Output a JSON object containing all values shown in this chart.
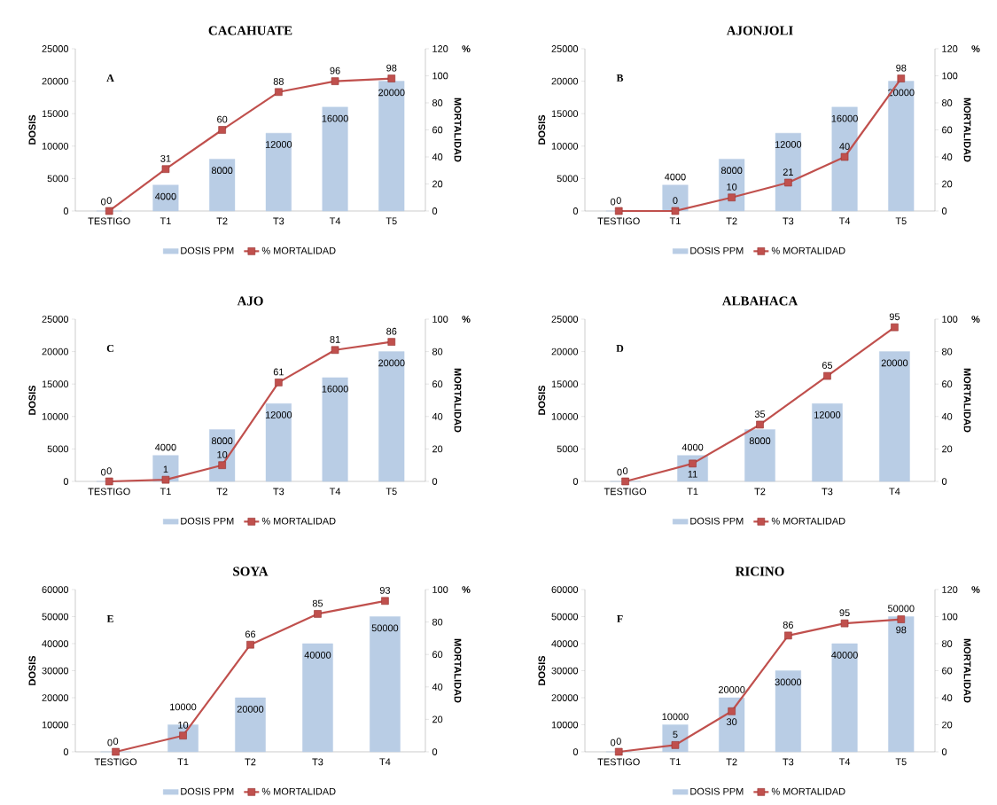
{
  "chart_data": [
    {
      "type": "bar",
      "title": "CACAHUATE",
      "ylabel": "DOSIS",
      "y2label": "MORTALIDAD",
      "annotations": [
        "A",
        "%"
      ],
      "categories": [
        "TESTIGO",
        "T1",
        "T2",
        "T3",
        "T4",
        "T5"
      ],
      "series": [
        {
          "name": "DOSIS PPM",
          "type": "bar",
          "color": "#b9cde5",
          "values": [
            0,
            4000,
            8000,
            12000,
            16000,
            20000
          ]
        },
        {
          "name": "% MORTALIDAD",
          "type": "line",
          "axis": "y2",
          "color": "#c0504d",
          "values": [
            0,
            31,
            60,
            88,
            96,
            98
          ]
        }
      ],
      "ylim": [
        0,
        25000
      ],
      "yticks": [
        0,
        5000,
        10000,
        15000,
        20000,
        25000
      ],
      "y2lim": [
        0,
        120
      ],
      "y2ticks": [
        0,
        20,
        40,
        60,
        80,
        100,
        120
      ],
      "data_labels": true,
      "legend": "bottom",
      "marker": "square",
      "line_style": "solid"
    },
    {
      "type": "bar",
      "title": "AJONJOLI",
      "ylabel": "DOSIS",
      "y2label": "MORTALIDAD",
      "annotations": [
        "B",
        "%"
      ],
      "categories": [
        "TESTIGO",
        "T1",
        "T2",
        "T3",
        "T4",
        "T5"
      ],
      "series": [
        {
          "name": "DOSIS PPM",
          "type": "bar",
          "color": "#b9cde5",
          "values": [
            0,
            4000,
            8000,
            12000,
            16000,
            20000
          ]
        },
        {
          "name": "% MORTALIDAD",
          "type": "line",
          "axis": "y2",
          "color": "#c0504d",
          "values": [
            0,
            0,
            10,
            21,
            40,
            98
          ]
        }
      ],
      "ylim": [
        0,
        25000
      ],
      "yticks": [
        0,
        5000,
        10000,
        15000,
        20000,
        25000
      ],
      "y2lim": [
        0,
        120
      ],
      "y2ticks": [
        0,
        20,
        40,
        60,
        80,
        100,
        120
      ],
      "data_labels": true,
      "legend": "bottom",
      "marker": "square",
      "line_style": "solid"
    },
    {
      "type": "bar",
      "title": "AJO",
      "ylabel": "DOSIS",
      "y2label": "MORTALIDAD",
      "annotations": [
        "C",
        "%"
      ],
      "categories": [
        "TESTIGO",
        "T1",
        "T2",
        "T3",
        "T4",
        "T5"
      ],
      "series": [
        {
          "name": "DOSIS PPM",
          "type": "bar",
          "color": "#b9cde5",
          "values": [
            0,
            4000,
            8000,
            12000,
            16000,
            20000
          ]
        },
        {
          "name": "% MORTALIDAD",
          "type": "line",
          "axis": "y2",
          "color": "#c0504d",
          "values": [
            0,
            1,
            10,
            61,
            81,
            86
          ]
        }
      ],
      "ylim": [
        0,
        25000
      ],
      "yticks": [
        0,
        5000,
        10000,
        15000,
        20000,
        25000
      ],
      "y2lim": [
        0,
        100
      ],
      "y2ticks": [
        0,
        20,
        40,
        60,
        80,
        100
      ],
      "data_labels": true,
      "legend": "bottom",
      "marker": "square",
      "line_style": "solid"
    },
    {
      "type": "bar",
      "title": "ALBAHACA",
      "ylabel": "DOSIS",
      "y2label": "MORTALIDAD",
      "annotations": [
        "D",
        "%"
      ],
      "categories": [
        "TESTIGO",
        "T1",
        "T2",
        "T3",
        "T4"
      ],
      "series": [
        {
          "name": "DOSIS PPM",
          "type": "bar",
          "color": "#b9cde5",
          "values": [
            0,
            4000,
            8000,
            12000,
            20000
          ]
        },
        {
          "name": "% MORTALIDAD",
          "type": "line",
          "axis": "y2",
          "color": "#c0504d",
          "values": [
            0,
            11,
            35,
            65,
            95
          ]
        }
      ],
      "ylim": [
        0,
        25000
      ],
      "yticks": [
        0,
        5000,
        10000,
        15000,
        20000,
        25000
      ],
      "y2lim": [
        0,
        100
      ],
      "y2ticks": [
        0,
        20,
        40,
        60,
        80,
        100
      ],
      "data_labels": true,
      "legend": "bottom",
      "marker": "square",
      "line_style": "solid"
    },
    {
      "type": "bar",
      "title": "SOYA",
      "ylabel": "DOSIS",
      "y2label": "MORTALIDAD",
      "annotations": [
        "E",
        "%"
      ],
      "categories": [
        "TESTIGO",
        "T1",
        "T2",
        "T3",
        "T4"
      ],
      "series": [
        {
          "name": "DOSIS PPM",
          "type": "bar",
          "color": "#b9cde5",
          "values": [
            0,
            10000,
            20000,
            40000,
            50000
          ]
        },
        {
          "name": "% MORTALIDAD",
          "type": "line",
          "axis": "y2",
          "color": "#c0504d",
          "values": [
            0,
            10,
            66,
            85,
            93
          ]
        }
      ],
      "ylim": [
        0,
        60000
      ],
      "yticks": [
        0,
        10000,
        20000,
        30000,
        40000,
        50000,
        60000
      ],
      "y2lim": [
        0,
        100
      ],
      "y2ticks": [
        0,
        20,
        40,
        60,
        80,
        100
      ],
      "data_labels": true,
      "legend": "bottom",
      "marker": "square",
      "line_style": "solid"
    },
    {
      "type": "bar",
      "title": "RICINO",
      "ylabel": "DOSIS",
      "y2label": "MORTALIDAD",
      "annotations": [
        "F",
        "%"
      ],
      "categories": [
        "TESTIGO",
        "T1",
        "T2",
        "T3",
        "T4",
        "T5"
      ],
      "series": [
        {
          "name": "DOSIS PPM",
          "type": "bar",
          "color": "#b9cde5",
          "values": [
            0,
            10000,
            20000,
            30000,
            40000,
            50000
          ]
        },
        {
          "name": "% MORTALIDAD",
          "type": "line",
          "axis": "y2",
          "color": "#c0504d",
          "values": [
            0,
            5,
            30,
            86,
            95,
            98
          ]
        }
      ],
      "ylim": [
        0,
        60000
      ],
      "yticks": [
        0,
        10000,
        20000,
        30000,
        40000,
        50000,
        60000
      ],
      "y2lim": [
        0,
        120
      ],
      "y2ticks": [
        0,
        20,
        40,
        60,
        80,
        100,
        120
      ],
      "data_labels": true,
      "legend": "bottom",
      "marker": "square",
      "line_style": "solid"
    }
  ]
}
